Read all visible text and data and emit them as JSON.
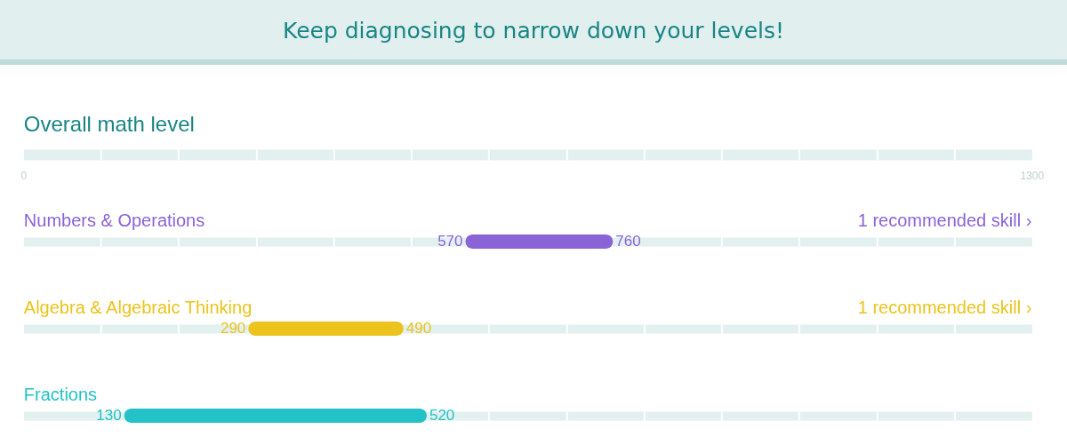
{
  "chart_data": {
    "type": "bar",
    "orientation": "horizontal",
    "title": "Keep diagnosing to narrow down your levels!",
    "categories": [
      "Overall math level",
      "Numbers & Operations",
      "Algebra & Algebraic Thinking",
      "Fractions"
    ],
    "base": [
      null,
      570,
      290,
      130
    ],
    "values": [
      null,
      190,
      200,
      390
    ],
    "colors": [
      null,
      "#8a63d7",
      "#ebc31c",
      "#22c2c8"
    ],
    "xlim": [
      0,
      1300
    ],
    "xticks": [
      0,
      {
        "value": 100,
        "label": null
      },
      {
        "value": 200,
        "label": null
      },
      {
        "value": 300,
        "label": null
      },
      {
        "value": 400,
        "label": null
      },
      {
        "value": 500,
        "label": null
      },
      {
        "value": 600,
        "label": null
      },
      {
        "value": 700,
        "label": null
      },
      {
        "value": 800,
        "label": null
      },
      {
        "value": 900,
        "label": null
      },
      {
        "value": 1000,
        "label": null
      },
      {
        "value": 1100,
        "label": null
      },
      {
        "value": 1200,
        "label": null
      },
      1300
    ],
    "grid": true,
    "annotations": [
      "570",
      "760",
      "1 recommended skill ›",
      "290",
      "490",
      "1 recommended skill ›",
      "130",
      "520"
    ]
  }
}
